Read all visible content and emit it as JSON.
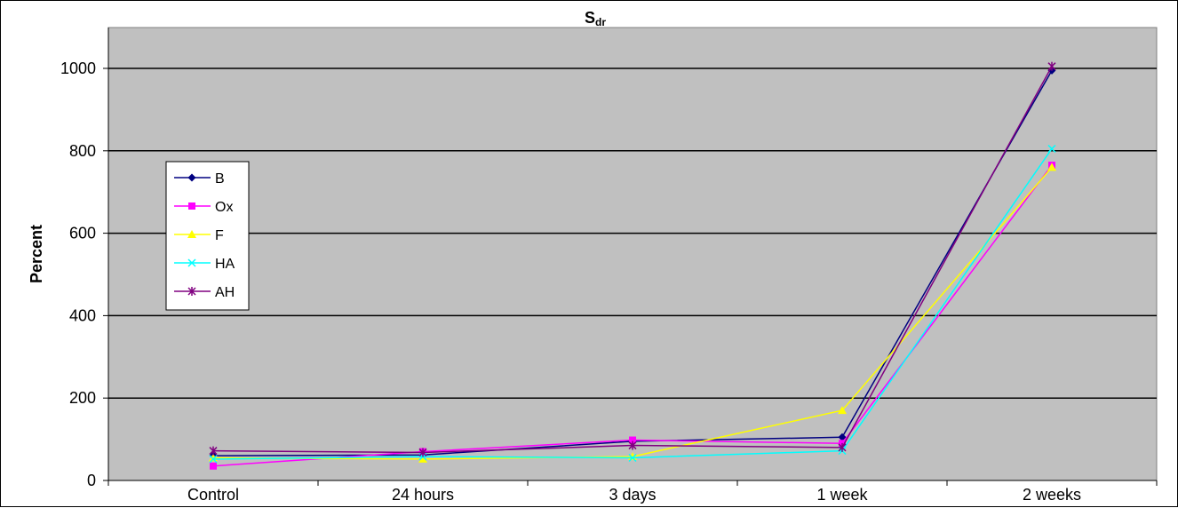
{
  "chart_data": {
    "type": "line",
    "title": "S",
    "title_subscript": "dr",
    "xlabel": "",
    "ylabel": "Percent",
    "categories": [
      "Control",
      "24 hours",
      "3 days",
      "1 week",
      "2 weeks"
    ],
    "ylim": [
      0,
      1000
    ],
    "yticks": [
      0,
      200,
      400,
      600,
      800,
      1000
    ],
    "grid": true,
    "legend_position": "left",
    "plot_background": "#c0c0c0",
    "series": [
      {
        "name": "B",
        "color": "#000080",
        "marker": "diamond",
        "values": [
          60,
          62,
          95,
          105,
          995
        ]
      },
      {
        "name": "Ox",
        "color": "#ff00ff",
        "marker": "square",
        "values": [
          35,
          70,
          98,
          90,
          765
        ]
      },
      {
        "name": "F",
        "color": "#ffff00",
        "marker": "triangle",
        "values": [
          55,
          52,
          58,
          170,
          760
        ]
      },
      {
        "name": "HA",
        "color": "#00ffff",
        "marker": "x",
        "values": [
          52,
          58,
          55,
          72,
          805
        ]
      },
      {
        "name": "AH",
        "color": "#800080",
        "marker": "star",
        "values": [
          72,
          68,
          85,
          80,
          1005
        ]
      }
    ]
  }
}
